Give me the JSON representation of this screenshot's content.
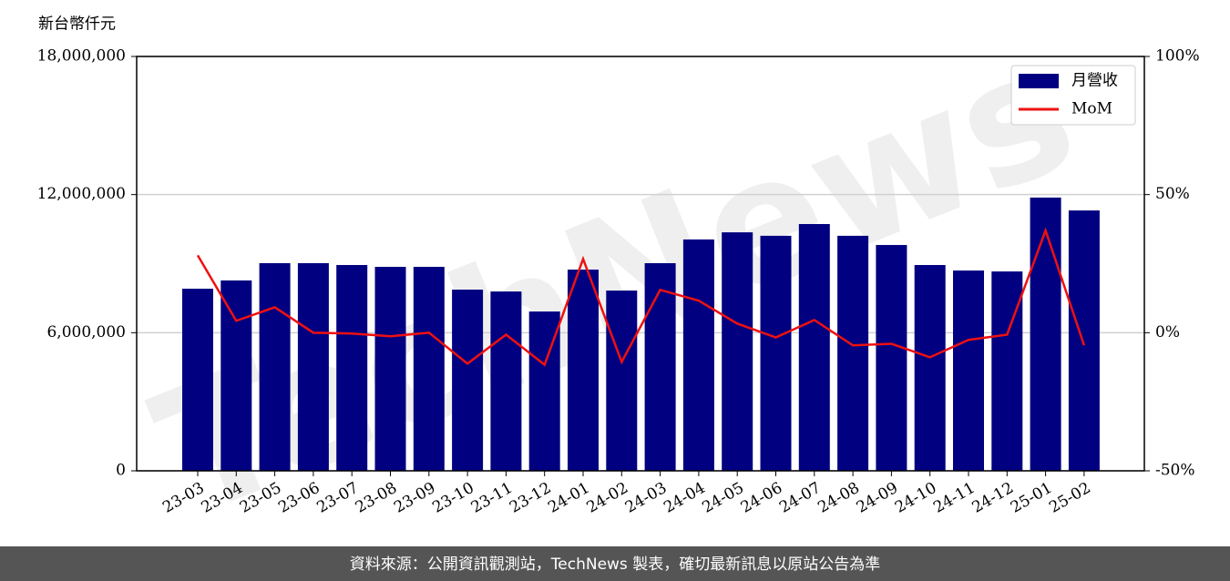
{
  "chart_data": {
    "type": "bar_line",
    "y_label": "新台幣仟元",
    "watermark": "TechNews",
    "footer": "資料來源：公開資訊觀測站，TechNews 製表，確切最新訊息以原站公告為準",
    "categories": [
      "23-03",
      "23-04",
      "23-05",
      "23-06",
      "23-07",
      "23-08",
      "23-09",
      "23-10",
      "23-11",
      "23-12",
      "24-01",
      "24-02",
      "24-03",
      "24-04",
      "24-05",
      "24-06",
      "24-07",
      "24-08",
      "24-09",
      "24-10",
      "24-11",
      "24-12",
      "25-01",
      "25-02"
    ],
    "series": [
      {
        "name": "月營收",
        "color": "#000080",
        "type": "bar",
        "values": [
          7910000,
          8270000,
          9020000,
          9020000,
          8940000,
          8860000,
          8860000,
          7870000,
          7790000,
          6920000,
          8740000,
          7830000,
          9020000,
          10050000,
          10360000,
          10210000,
          10720000,
          10210000,
          9810000,
          8940000,
          8700000,
          8660000,
          11870000,
          11310000
        ]
      },
      {
        "name": "MoM",
        "color": "#ee1111",
        "type": "line",
        "axis": "y2",
        "values": [
          28,
          4.3,
          9.2,
          0,
          -0.3,
          -1.3,
          0,
          -11.2,
          -0.7,
          -11.6,
          26.7,
          -10.6,
          15.5,
          11.6,
          3.3,
          -1.7,
          4.6,
          -4.6,
          -4,
          -8.9,
          -2.6,
          -0.7,
          37,
          -4.6
        ]
      }
    ],
    "ylim": [
      0,
      18000000
    ],
    "yticks": [
      0,
      {
        "value": 6000000,
        "label": "6,000,000"
      },
      {
        "value": 12000000,
        "label": "12,000,000"
      },
      {
        "value": 18000000,
        "label": "18,000,000"
      }
    ],
    "y2lim": [
      -50,
      100
    ],
    "y2ticks": [
      {
        "value": -50,
        "label": "-50%"
      },
      {
        "value": 0,
        "label": "0%"
      },
      {
        "value": 50,
        "label": "50%"
      },
      {
        "value": 100,
        "label": "100%"
      }
    ],
    "grid": true,
    "legend": "upper right"
  }
}
